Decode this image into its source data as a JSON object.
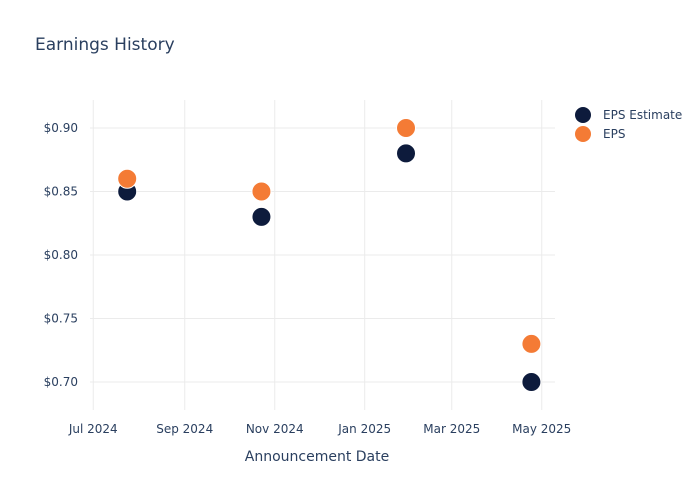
{
  "chart_data": {
    "type": "scatter",
    "title": "Earnings History",
    "xlabel": "Announcement Date",
    "ylabel": "",
    "x_axis": {
      "type": "date",
      "range": [
        "2024-06-22",
        "2025-05-10"
      ],
      "ticks": [
        {
          "date": "2024-07-01",
          "label": "Jul 2024"
        },
        {
          "date": "2024-09-01",
          "label": "Sep 2024"
        },
        {
          "date": "2024-11-01",
          "label": "Nov 2024"
        },
        {
          "date": "2025-01-01",
          "label": "Jan 2025"
        },
        {
          "date": "2025-03-01",
          "label": "Mar 2025"
        },
        {
          "date": "2025-05-01",
          "label": "May 2025"
        }
      ]
    },
    "y_axis": {
      "range": [
        0.678,
        0.922
      ],
      "ticks": [
        {
          "value": 0.7,
          "label": "$0.70"
        },
        {
          "value": 0.75,
          "label": "$0.75"
        },
        {
          "value": 0.8,
          "label": "$0.80"
        },
        {
          "value": 0.85,
          "label": "$0.85"
        },
        {
          "value": 0.9,
          "label": "$0.90"
        }
      ]
    },
    "grid": true,
    "legend_position": "top-right",
    "series": [
      {
        "name": "EPS Estimate",
        "color": "#0d1b3c",
        "points": [
          {
            "x": "2024-07-24",
            "y": 0.85
          },
          {
            "x": "2024-10-23",
            "y": 0.83
          },
          {
            "x": "2025-01-29",
            "y": 0.88
          },
          {
            "x": "2025-04-24",
            "y": 0.7
          }
        ]
      },
      {
        "name": "EPS",
        "color": "#f47b35",
        "points": [
          {
            "x": "2024-07-24",
            "y": 0.86
          },
          {
            "x": "2024-10-23",
            "y": 0.85
          },
          {
            "x": "2025-01-29",
            "y": 0.9
          },
          {
            "x": "2025-04-24",
            "y": 0.73
          }
        ]
      }
    ]
  }
}
